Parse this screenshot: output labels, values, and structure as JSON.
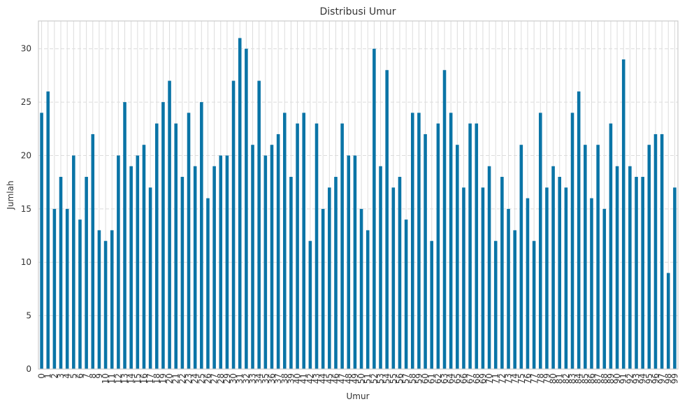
{
  "chart_data": {
    "type": "bar",
    "title": "Distribusi Umur",
    "x_label": "Umur",
    "y_label": "Jumlah",
    "categories": [
      "0",
      "1",
      "2",
      "3",
      "4",
      "5",
      "6",
      "7",
      "8",
      "9",
      "10",
      "11",
      "12",
      "13",
      "14",
      "15",
      "16",
      "17",
      "18",
      "19",
      "20",
      "21",
      "22",
      "23",
      "24",
      "25",
      "26",
      "27",
      "28",
      "29",
      "30",
      "31",
      "32",
      "33",
      "34",
      "35",
      "36",
      "37",
      "38",
      "39",
      "40",
      "41",
      "42",
      "43",
      "44",
      "45",
      "46",
      "47",
      "48",
      "49",
      "50",
      "51",
      "52",
      "53",
      "54",
      "55",
      "56",
      "57",
      "58",
      "59",
      "60",
      "61",
      "62",
      "63",
      "64",
      "65",
      "66",
      "67",
      "68",
      "69",
      "70",
      "71",
      "72",
      "73",
      "74",
      "75",
      "76",
      "77",
      "78",
      "79",
      "80",
      "81",
      "82",
      "83",
      "84",
      "85",
      "86",
      "87",
      "88",
      "89",
      "90",
      "91",
      "92",
      "93",
      "94",
      "95",
      "96",
      "97",
      "98",
      "99"
    ],
    "values": [
      24,
      26,
      15,
      18,
      15,
      20,
      14,
      18,
      22,
      13,
      12,
      13,
      20,
      25,
      19,
      20,
      21,
      17,
      23,
      25,
      27,
      23,
      18,
      24,
      19,
      25,
      16,
      19,
      20,
      20,
      27,
      31,
      30,
      21,
      27,
      20,
      21,
      22,
      24,
      18,
      23,
      24,
      12,
      23,
      15,
      17,
      18,
      23,
      20,
      20,
      15,
      13,
      30,
      19,
      28,
      17,
      18,
      14,
      24,
      24,
      22,
      12,
      23,
      28,
      24,
      21,
      17,
      23,
      23,
      17,
      19,
      12,
      18,
      15,
      13,
      21,
      16,
      12,
      24,
      17,
      19,
      18,
      17,
      24,
      26,
      21,
      16,
      21,
      15,
      23,
      19,
      29,
      19,
      18,
      18,
      21,
      22,
      22,
      9,
      17
    ],
    "color": "#0a74a6",
    "ylim": [
      0,
      32.6
    ],
    "yticks": [
      0,
      5,
      10,
      15,
      20,
      25,
      30
    ],
    "grid": true
  }
}
